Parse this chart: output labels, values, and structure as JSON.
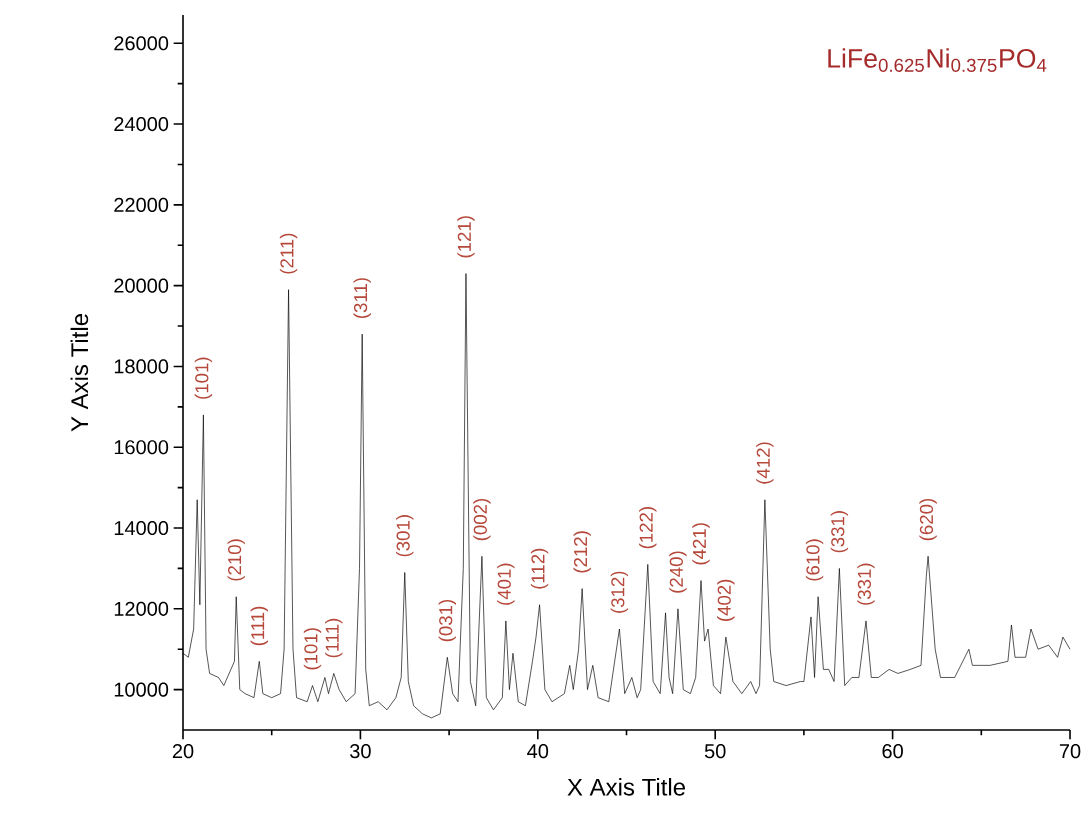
{
  "chart_data": {
    "type": "line",
    "title": "LiFe$_{0.625}$Ni$_{0.375}$PO$_{4}$",
    "xlabel": "X Axis Title",
    "ylabel": "Y Axis Title",
    "xlim": [
      20,
      70
    ],
    "xticks": [
      20,
      30,
      40,
      50,
      60,
      70
    ],
    "ylim": [
      9000,
      26700
    ],
    "yticks": [
      10000,
      12000,
      14000,
      16000,
      18000,
      20000,
      22000,
      24000,
      26000
    ],
    "marker": "none",
    "line_style": "solid",
    "series": [
      {
        "color": "#000000",
        "x": [
          20.0,
          20.3,
          20.6,
          20.8,
          20.95,
          21.15,
          21.3,
          21.5,
          22.0,
          22.3,
          22.6,
          22.9,
          23.0,
          23.2,
          23.5,
          24.0,
          24.3,
          24.5,
          25.0,
          25.5,
          25.7,
          25.95,
          26.2,
          26.4,
          27.0,
          27.3,
          27.6,
          28.0,
          28.2,
          28.5,
          28.8,
          29.2,
          29.7,
          29.95,
          30.1,
          30.3,
          30.5,
          31.0,
          31.5,
          32.0,
          32.3,
          32.5,
          32.7,
          33.0,
          33.5,
          34.0,
          34.5,
          34.9,
          35.2,
          35.5,
          35.8,
          35.95,
          36.2,
          36.5,
          36.85,
          37.1,
          37.5,
          38.0,
          38.2,
          38.4,
          38.6,
          38.9,
          39.3,
          39.7,
          39.9,
          40.1,
          40.4,
          40.8,
          41.5,
          41.8,
          42.0,
          42.3,
          42.5,
          42.8,
          43.1,
          43.4,
          44.0,
          44.6,
          44.9,
          45.3,
          45.6,
          45.8,
          46.2,
          46.5,
          46.9,
          47.2,
          47.4,
          47.6,
          47.9,
          48.2,
          48.6,
          48.9,
          49.2,
          49.4,
          49.6,
          49.9,
          50.3,
          50.6,
          51.0,
          51.5,
          52.0,
          52.3,
          52.5,
          52.8,
          53.1,
          53.3,
          54.0,
          54.8,
          55.0,
          55.4,
          55.6,
          55.8,
          56.1,
          56.4,
          56.7,
          57.0,
          57.3,
          57.7,
          58.1,
          58.5,
          58.8,
          59.2,
          59.8,
          60.3,
          61.0,
          61.6,
          61.9,
          62.0,
          62.4,
          62.7,
          63.5,
          64.3,
          64.5,
          65.5,
          66.5,
          66.7,
          66.9,
          67.5,
          67.8,
          68.2,
          68.8,
          69.3,
          69.6,
          70.0
        ],
        "values": [
          10900,
          10800,
          11500,
          14700,
          12100,
          16800,
          11000,
          10400,
          10300,
          10100,
          10400,
          10700,
          12300,
          10000,
          9900,
          9800,
          10700,
          9900,
          9800,
          9900,
          11000,
          19900,
          11000,
          9800,
          9700,
          10100,
          9700,
          10300,
          9900,
          10400,
          10000,
          9700,
          9900,
          13000,
          18800,
          10500,
          9600,
          9700,
          9500,
          9800,
          10300,
          12900,
          10200,
          9600,
          9400,
          9300,
          9400,
          10800,
          9900,
          9700,
          13000,
          20300,
          10200,
          9600,
          13300,
          9800,
          9500,
          9800,
          11700,
          10000,
          10900,
          9700,
          9600,
          10700,
          11300,
          12100,
          10000,
          9700,
          9900,
          10600,
          10000,
          11000,
          12500,
          10000,
          10600,
          9800,
          9700,
          11500,
          9900,
          10300,
          9800,
          10000,
          13100,
          10200,
          9900,
          11900,
          10300,
          9900,
          12000,
          10000,
          9900,
          10300,
          12700,
          11200,
          11500,
          10100,
          9900,
          11300,
          10200,
          9900,
          10200,
          9900,
          10100,
          14700,
          11000,
          10200,
          10100,
          10200,
          10200,
          11800,
          10300,
          12300,
          10500,
          10500,
          10200,
          13000,
          10100,
          10300,
          10300,
          11700,
          10300,
          10300,
          10500,
          10400,
          10500,
          10600,
          12800,
          13300,
          11000,
          10300,
          10300,
          11000,
          10600,
          10600,
          10700,
          11600,
          10800,
          10800,
          11500,
          11000,
          11100,
          10800,
          11300,
          11000
        ]
      }
    ],
    "annotations": [
      {
        "text": "(101)",
        "x": 21.15,
        "y": 16800
      },
      {
        "text": "(210)",
        "x": 23.0,
        "y": 12300
      },
      {
        "text": "(111)",
        "x": 24.3,
        "y": 10700
      },
      {
        "text": "(211)",
        "x": 25.95,
        "y": 19900
      },
      {
        "text": "(101)",
        "x": 27.3,
        "y": 10100
      },
      {
        "text": "(111)",
        "x": 28.5,
        "y": 10400
      },
      {
        "text": "(311)",
        "x": 30.1,
        "y": 18800
      },
      {
        "text": "(301)",
        "x": 32.5,
        "y": 12900
      },
      {
        "text": "(031)",
        "x": 34.9,
        "y": 10800
      },
      {
        "text": "(121)",
        "x": 35.95,
        "y": 20300
      },
      {
        "text": "(002)",
        "x": 36.85,
        "y": 13300
      },
      {
        "text": "(401)",
        "x": 38.2,
        "y": 11700
      },
      {
        "text": "(112)",
        "x": 40.1,
        "y": 12100
      },
      {
        "text": "(212)",
        "x": 42.5,
        "y": 12500
      },
      {
        "text": "(312)",
        "x": 44.6,
        "y": 11500
      },
      {
        "text": "(122)",
        "x": 46.2,
        "y": 13100
      },
      {
        "text": "(240)",
        "x": 47.9,
        "y": 12000
      },
      {
        "text": "(421)",
        "x": 49.2,
        "y": 12700
      },
      {
        "text": "(402)",
        "x": 50.6,
        "y": 11300
      },
      {
        "text": "(412)",
        "x": 52.8,
        "y": 14700
      },
      {
        "text": "(610)",
        "x": 55.6,
        "y": 12300
      },
      {
        "text": "(331)",
        "x": 57.0,
        "y": 13000
      },
      {
        "text": "(331)",
        "x": 58.5,
        "y": 11700
      },
      {
        "text": "(620)",
        "x": 62.0,
        "y": 13300
      }
    ]
  }
}
